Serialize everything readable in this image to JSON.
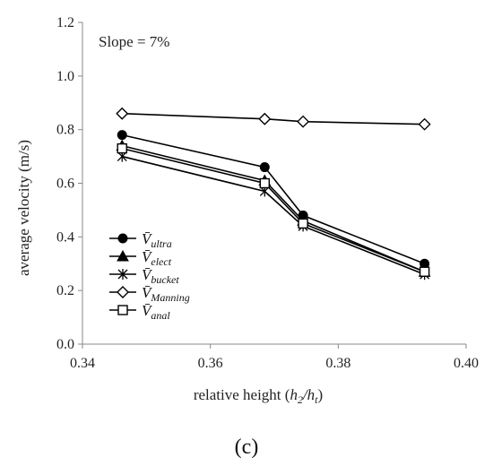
{
  "chart_data": {
    "type": "line",
    "annotation": "Slope = 7%",
    "xlabel": {
      "prefix": "relative height (",
      "h2": "h",
      "h2_sub": "2",
      "slash": "/",
      "ht": "h",
      "ht_sub": "t",
      "suffix": ")"
    },
    "ylabel": "average velocity (m/s)",
    "xlim": [
      0.34,
      0.4
    ],
    "ylim": [
      0.0,
      1.2
    ],
    "x_ticks": [
      "0.34",
      "0.36",
      "0.38",
      "0.40"
    ],
    "y_ticks": [
      "0.0",
      "0.2",
      "0.4",
      "0.6",
      "0.8",
      "1.0",
      "1.2"
    ],
    "x_tick_values": [
      0.34,
      0.36,
      0.38,
      0.4
    ],
    "y_tick_values": [
      0.0,
      0.2,
      0.4,
      0.6,
      0.8,
      1.0,
      1.2
    ],
    "grid": false,
    "legend_position": "bottom-left",
    "x": [
      0.3462,
      0.3685,
      0.3745,
      0.3935
    ],
    "series": [
      {
        "name": "V̄",
        "sub": "ultra",
        "marker": "circle-filled",
        "values": [
          0.78,
          0.66,
          0.48,
          0.3
        ]
      },
      {
        "name": "V̄",
        "sub": "elect",
        "marker": "triangle-filled",
        "values": [
          0.74,
          0.61,
          0.46,
          0.27
        ]
      },
      {
        "name": "V̄",
        "sub": "bucket",
        "marker": "star",
        "values": [
          0.7,
          0.57,
          0.44,
          0.26
        ]
      },
      {
        "name": "V̄",
        "sub": "Manning",
        "marker": "diamond-open",
        "values": [
          0.86,
          0.84,
          0.83,
          0.82
        ]
      },
      {
        "name": "V̄",
        "sub": "anal",
        "marker": "square-open",
        "values": [
          0.73,
          0.6,
          0.45,
          0.27
        ]
      }
    ]
  },
  "panel_label": "(c)",
  "colors": {
    "line": "#000000",
    "axis": "#888888"
  }
}
